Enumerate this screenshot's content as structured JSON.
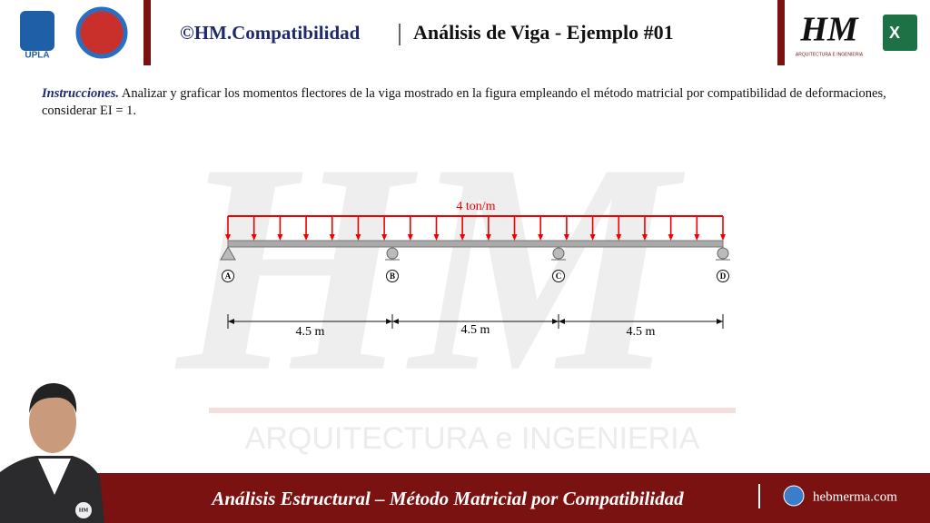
{
  "header": {
    "logo_left": "UPLA",
    "brand": "©HM.Compatibilidad",
    "title": "Análisis de Viga - Ejemplo #01",
    "logo_right": "HM",
    "logo_right_caption": "ARQUITECTURA E INGENIERIA",
    "excel": "X"
  },
  "instructions": {
    "label": "Instrucciones.",
    "text": "Analizar y graficar los momentos flectores de la viga mostrado en la figura empleando el método matricial por compatibilidad de deformaciones, considerar EI = 1."
  },
  "beam": {
    "load": "4 ton/m",
    "supports": [
      "A",
      "B",
      "C",
      "D"
    ],
    "spans": [
      "4.5 m",
      "4.5 m",
      "4.5 m"
    ]
  },
  "watermark": {
    "logo": "HM",
    "text": "ARQUITECTURA e INGENIERIA"
  },
  "footer": {
    "title": "Análisis Estructural – Método Matricial por Compatibilidad",
    "site": "hebmerma.com",
    "badge": "HM"
  }
}
